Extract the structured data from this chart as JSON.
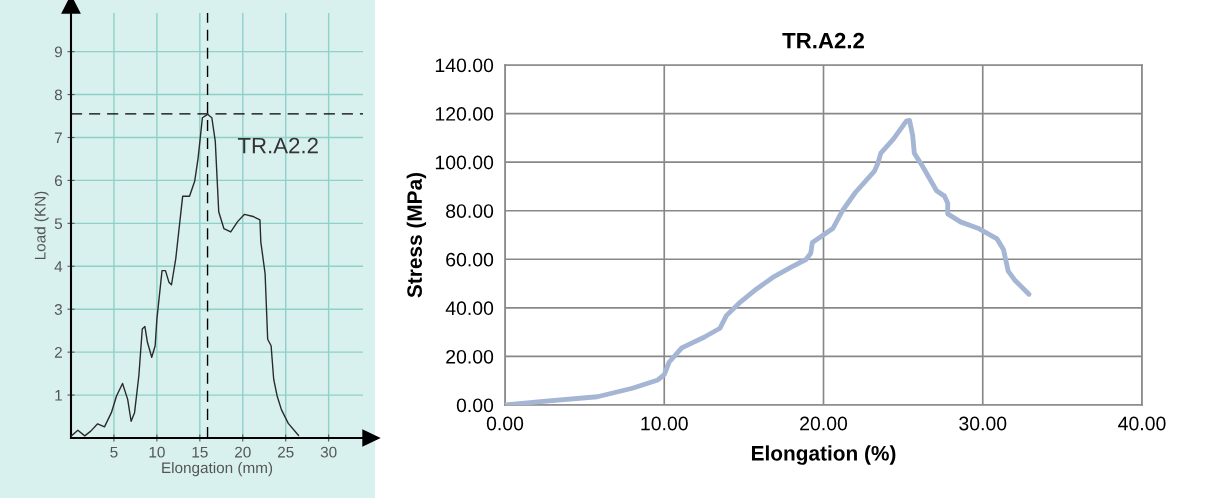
{
  "chart_data": [
    {
      "type": "line",
      "xlabel": "Elongation (mm)",
      "ylabel": "Load (KN)",
      "annotations": [
        "TR.A2.2"
      ],
      "xlim": [
        0,
        34
      ],
      "ylim": [
        0,
        9.9
      ],
      "xticks": [
        5,
        10,
        15,
        20,
        25,
        30
      ],
      "yticks": [
        1,
        2,
        3,
        4,
        5,
        6,
        7,
        8,
        9
      ],
      "grid": true,
      "ref_lines": [
        {
          "axis": "y",
          "value": 7.55,
          "line_style": "dashed",
          "color": "#000000"
        },
        {
          "axis": "x",
          "value": 15.9,
          "line_style": "dashed",
          "color": "#000000"
        }
      ],
      "series": [
        {
          "color": "#2a2a2a",
          "x": [
            0,
            0.8,
            1.6,
            2.3,
            3.1,
            3.9,
            4.7,
            5.3,
            6.0,
            6.6,
            7.0,
            7.4,
            7.9,
            8.3,
            8.6,
            8.9,
            9.4,
            9.8,
            10.0,
            10.6,
            11.0,
            11.4,
            11.7,
            12.2,
            13.0,
            13.8,
            14.4,
            14.8,
            15.3,
            15.9,
            16.4,
            16.8,
            17.2,
            17.8,
            18.6,
            19.4,
            20.2,
            21.2,
            22.0,
            22.1,
            22.6,
            22.9,
            23.3,
            23.6,
            24.0,
            24.5,
            25.3,
            26.5
          ],
          "values": [
            0.04,
            0.18,
            0.05,
            0.16,
            0.33,
            0.26,
            0.59,
            0.98,
            1.27,
            0.9,
            0.39,
            0.59,
            1.45,
            2.54,
            2.6,
            2.23,
            1.88,
            2.15,
            2.77,
            3.9,
            3.9,
            3.63,
            3.57,
            4.18,
            5.63,
            5.63,
            5.98,
            6.52,
            7.46,
            7.54,
            7.46,
            6.91,
            5.27,
            4.88,
            4.8,
            5.04,
            5.21,
            5.16,
            5.08,
            4.57,
            3.83,
            2.3,
            2.15,
            1.37,
            0.98,
            0.66,
            0.34,
            0.06
          ]
        }
      ]
    },
    {
      "type": "line",
      "title": "TR.A2.2",
      "xlabel": "Elongation (%)",
      "ylabel": "Stress (MPa)",
      "xlim": [
        0,
        40
      ],
      "ylim": [
        0,
        140
      ],
      "xticks": [
        {
          "value": 0,
          "label": "0.00"
        },
        {
          "value": 10,
          "label": "10.00"
        },
        {
          "value": 20,
          "label": "20.00"
        },
        {
          "value": 30,
          "label": "30.00"
        },
        {
          "value": 40,
          "label": "40.00"
        }
      ],
      "yticks": [
        {
          "value": 0,
          "label": "0.00"
        },
        {
          "value": 20,
          "label": "20.00"
        },
        {
          "value": 40,
          "label": "40.00"
        },
        {
          "value": 60,
          "label": "60.00"
        },
        {
          "value": 80,
          "label": "80.00"
        },
        {
          "value": 100,
          "label": "100.00"
        },
        {
          "value": 120,
          "label": "120.00"
        },
        {
          "value": 140,
          "label": "140.00"
        }
      ],
      "grid": true,
      "series": [
        {
          "color": "#a5b6d4",
          "x": [
            0,
            2.4,
            5.8,
            8.0,
            9.6,
            10.0,
            10.3,
            11.1,
            12.5,
            13.5,
            13.9,
            14.7,
            15.8,
            16.9,
            18.0,
            18.9,
            19.2,
            19.3,
            19.9,
            20.6,
            21.2,
            22.0,
            23.2,
            23.4,
            23.6,
            24.4,
            25.2,
            25.4,
            25.6,
            25.7,
            26.2,
            27.1,
            27.6,
            27.8,
            27.8,
            28.6,
            29.7,
            30.9,
            31.3,
            31.6,
            32.0,
            32.9
          ],
          "values": [
            0,
            1.5,
            3.4,
            6.9,
            10.3,
            12.5,
            17.6,
            23.5,
            27.9,
            31.6,
            36.8,
            41.9,
            47.8,
            52.9,
            56.9,
            59.9,
            62.5,
            66.9,
            69.6,
            72.8,
            80.1,
            87.5,
            96.3,
            99.3,
            103.7,
            109.6,
            116.9,
            117.2,
            111.0,
            103.7,
            98.5,
            88.2,
            86.0,
            83.1,
            78.7,
            75.4,
            72.8,
            68.4,
            64.0,
            55.1,
            51.5,
            45.6
          ]
        }
      ]
    }
  ]
}
